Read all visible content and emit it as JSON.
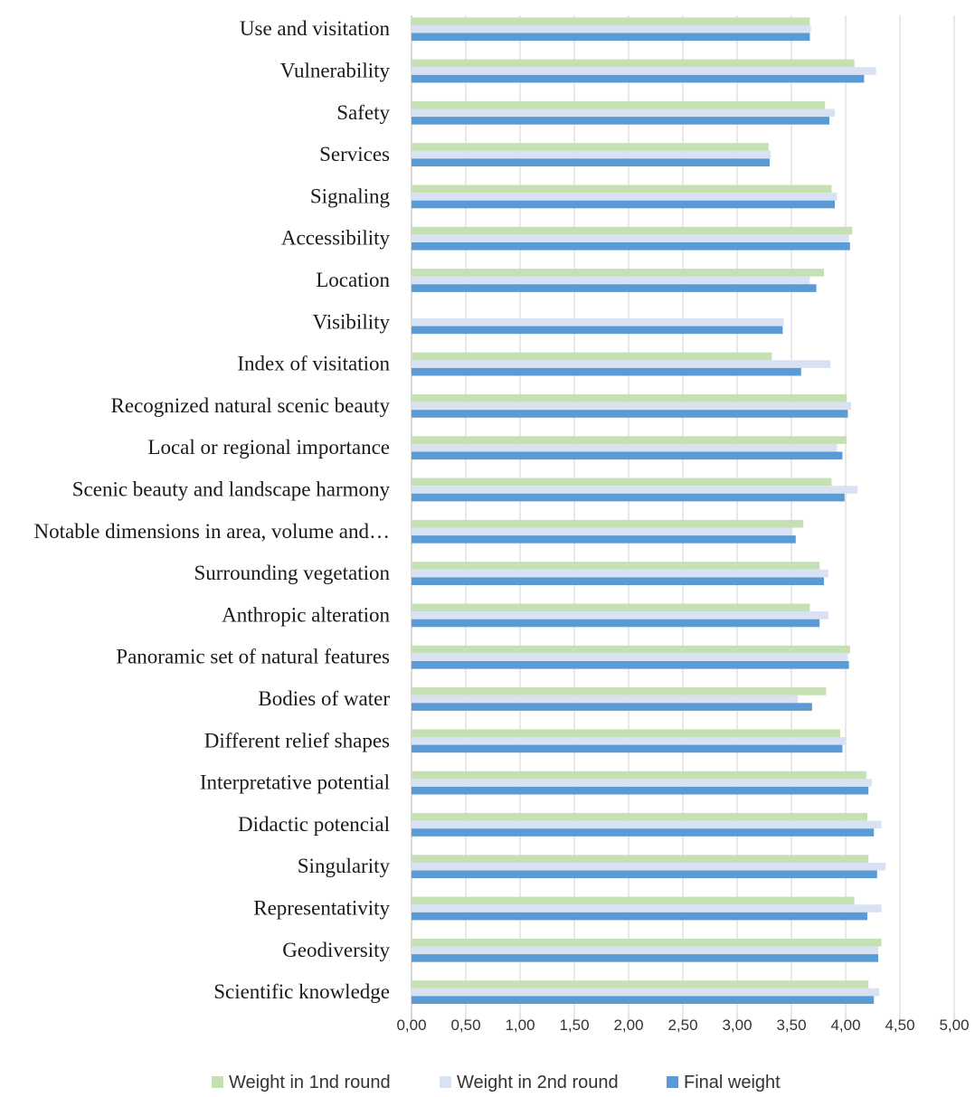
{
  "chart_data": {
    "type": "bar",
    "orientation": "horizontal",
    "categories": [
      "Use and visitation",
      "Vulnerability",
      "Safety",
      "Services",
      "Signaling",
      "Accessibility",
      "Location",
      "Visibility",
      "Index of visitation",
      "Recognized natural scenic beauty",
      "Local or regional importance",
      "Scenic beauty and landscape harmony",
      "Notable dimensions in area, volume and…",
      "Surrounding vegetation",
      "Anthropic alteration",
      "Panoramic set of natural features",
      "Bodies of water",
      "Different relief shapes",
      "Interpretative potential",
      "Didactic potencial",
      "Singularity",
      "Representativity",
      "Geodiversity",
      "Scientific knowledge"
    ],
    "series": [
      {
        "name": "Weight in 1nd round",
        "color": "#c5e0b3",
        "values": [
          3.67,
          4.08,
          3.81,
          3.29,
          3.87,
          4.06,
          3.8,
          0,
          3.32,
          4.01,
          4.01,
          3.87,
          3.61,
          3.76,
          3.67,
          4.04,
          3.82,
          3.95,
          4.19,
          4.2,
          4.21,
          4.08,
          4.33,
          4.21
        ]
      },
      {
        "name": "Weight in 2nd round",
        "color": "#d9e2f3",
        "values": [
          3.68,
          4.28,
          3.9,
          3.31,
          3.92,
          4.03,
          3.67,
          3.43,
          3.86,
          4.05,
          3.92,
          4.11,
          3.51,
          3.84,
          3.84,
          4.02,
          3.56,
          4.0,
          4.24,
          4.33,
          4.37,
          4.33,
          4.3,
          4.31
        ]
      },
      {
        "name": "Final weight",
        "color": "#5b9bd5",
        "values": [
          3.67,
          4.17,
          3.85,
          3.3,
          3.9,
          4.04,
          3.73,
          3.42,
          3.59,
          4.02,
          3.97,
          3.99,
          3.54,
          3.8,
          3.76,
          4.03,
          3.69,
          3.97,
          4.21,
          4.26,
          4.29,
          4.2,
          4.3,
          4.26
        ]
      }
    ],
    "x_ticks": [
      "0,00",
      "0,50",
      "1,00",
      "1,50",
      "2,00",
      "2,50",
      "3,00",
      "3,50",
      "4,00",
      "4,50",
      "5,00"
    ],
    "xlim": [
      0,
      5
    ],
    "title": "",
    "xlabel": "",
    "ylabel": "",
    "grid": "vertical",
    "legend_position": "bottom",
    "gridline_color": "#d9d9d9"
  }
}
